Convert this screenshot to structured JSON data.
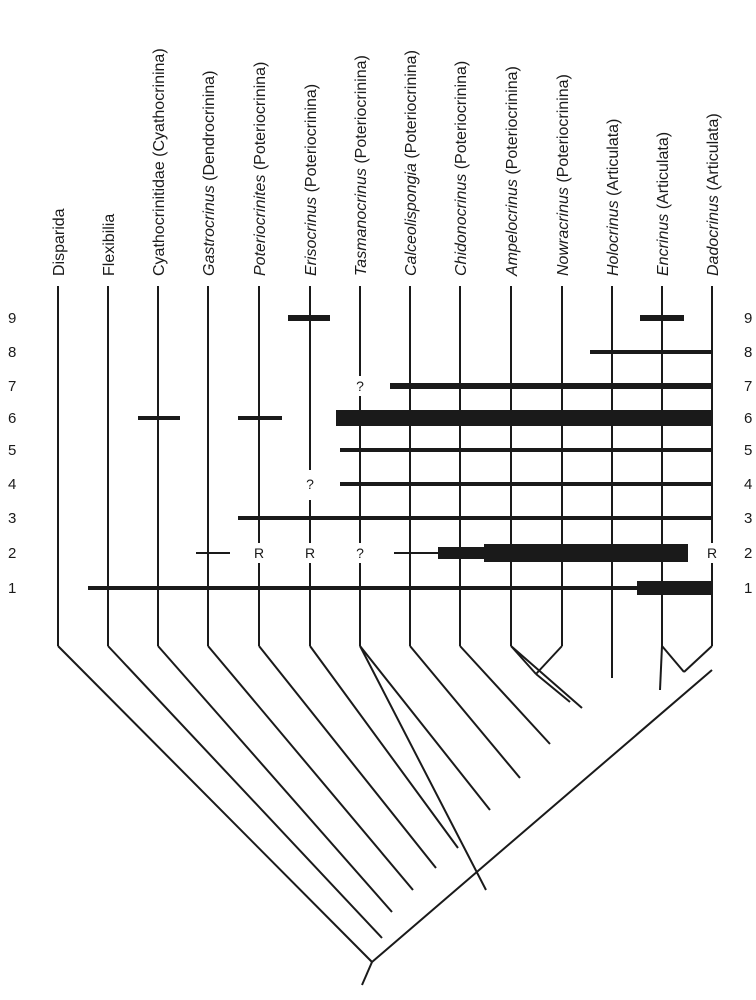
{
  "taxa": [
    {
      "name": "Disparida",
      "suborder": ""
    },
    {
      "name": "Flexibilia",
      "suborder": ""
    },
    {
      "name": "Cyathocrinitidae",
      "suborder": "(Cyathocrinina)"
    },
    {
      "name": "Gastrocrinus",
      "suborder": "(Dendrocrinina)",
      "italic": true
    },
    {
      "name": "Poteriocrinites",
      "suborder": "(Poteriocrinina)",
      "italic": true
    },
    {
      "name": "Erisocrinus",
      "suborder": "(Poteriocrinina)",
      "italic": true
    },
    {
      "name": "Tasmanocrinus",
      "suborder": "(Poteriocrinina)",
      "italic": true
    },
    {
      "name": "Calceolispongia",
      "suborder": "(Poteriocrinina)",
      "italic": true
    },
    {
      "name": "Chidonocrinus",
      "suborder": "(Poteriocrinina)",
      "italic": true
    },
    {
      "name": "Ampelocrinus",
      "suborder": "(Poteriocrinina)",
      "italic": true
    },
    {
      "name": "Nowracrinus",
      "suborder": "(Poteriocrinina)",
      "italic": true
    },
    {
      "name": "Holocrinus",
      "suborder": "(Articulata)",
      "italic": true
    },
    {
      "name": "Encrinus",
      "suborder": "(Articulata)",
      "italic": true
    },
    {
      "name": "Dadocrinus",
      "suborder": "(Articulata)",
      "italic": true
    }
  ],
  "characters": [
    "1",
    "2",
    "3",
    "4",
    "5",
    "6",
    "7",
    "8",
    "9"
  ],
  "state_marks": [
    {
      "text": "R",
      "taxon": 4,
      "character": 2
    },
    {
      "text": "R",
      "taxon": 5,
      "character": 2
    },
    {
      "text": "R",
      "taxon": 13,
      "character": 2
    },
    {
      "text": "?",
      "taxon": 6,
      "character": 2
    },
    {
      "text": "?",
      "taxon": 5,
      "character": 4
    },
    {
      "text": "?",
      "taxon": 6,
      "character": 7
    }
  ]
}
